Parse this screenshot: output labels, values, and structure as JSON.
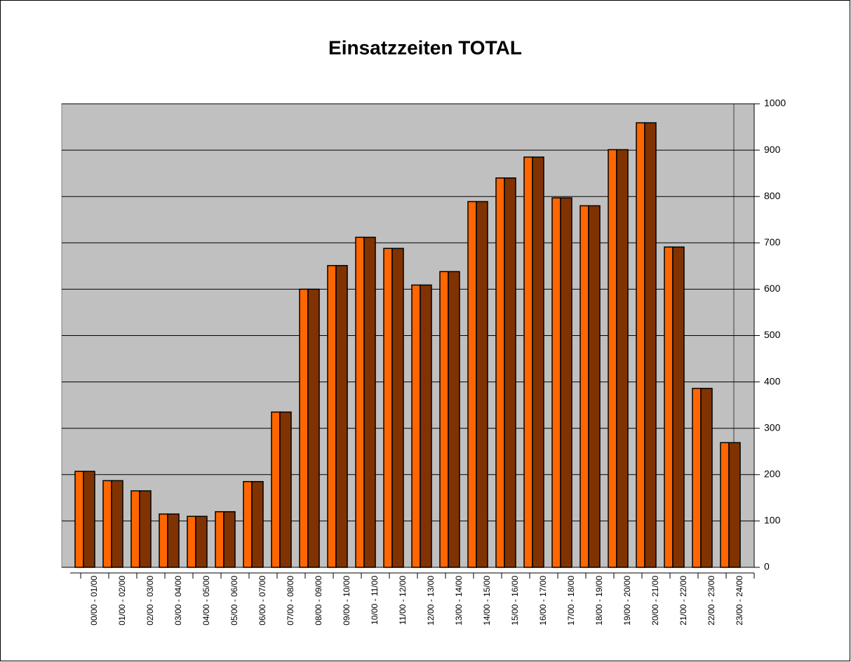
{
  "chart_data": {
    "type": "bar",
    "title": "Einsatzzeiten TOTAL",
    "categories": [
      "00/00 - 01/00",
      "01/00 - 02/00",
      "02/00 - 03/00",
      "03/00 - 04/00",
      "04/00 - 05/00",
      "05/00 - 06/00",
      "06/00 - 07/00",
      "07/00 - 08/00",
      "08/00 - 09/00",
      "09/00 - 10/00",
      "10/00 - 11/00",
      "11/00 - 12/00",
      "12/00 - 13/00",
      "13/00 - 14/00",
      "14/00 - 15/00",
      "15/00 - 16/00",
      "16/00 - 17/00",
      "17/00 - 18/00",
      "18/00 - 19/00",
      "19/00 - 20/00",
      "20/00 - 21/00",
      "21/00 - 22/00",
      "22/00 - 23/00",
      "23/00 - 24/00"
    ],
    "values": [
      207,
      187,
      165,
      115,
      110,
      120,
      185,
      335,
      600,
      651,
      712,
      688,
      609,
      638,
      789,
      840,
      885,
      797,
      780,
      901,
      959,
      691,
      386,
      269
    ],
    "color": "#ff6600",
    "ylim": [
      0,
      1000
    ],
    "yticks": [
      0,
      100,
      200,
      300,
      400,
      500,
      600,
      700,
      800,
      900,
      1000
    ],
    "grid": true
  }
}
